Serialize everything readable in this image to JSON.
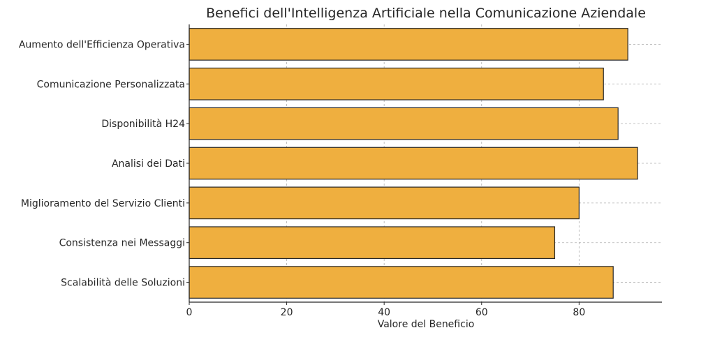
{
  "chart_data": {
    "type": "bar",
    "orientation": "horizontal",
    "title": "Benefici dell'Intelligenza Artificiale nella Comunicazione Aziendale",
    "xlabel": "Valore del Beneficio",
    "ylabel": "",
    "categories": [
      "Aumento dell'Efficienza Operativa",
      "Comunicazione Personalizzata",
      "Disponibilità H24",
      "Analisi dei Dati",
      "Miglioramento del Servizio Clienti",
      "Consistenza nei Messaggi",
      "Scalabilità delle Soluzioni"
    ],
    "values": [
      90,
      85,
      88,
      92,
      80,
      75,
      87
    ],
    "xlim": [
      0,
      97
    ],
    "xticks": [
      0,
      20,
      40,
      60,
      80
    ],
    "grid": true,
    "bar_color": "#EFAF3F",
    "edge_color": "#262626"
  }
}
